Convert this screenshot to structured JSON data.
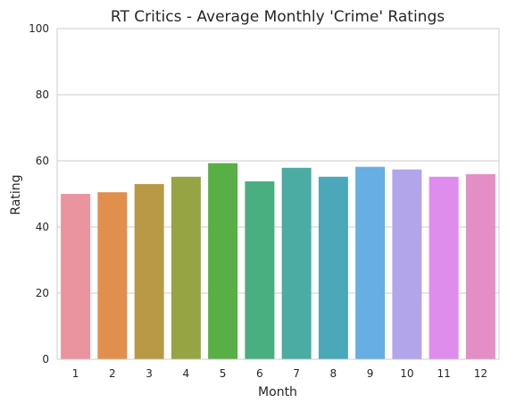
{
  "chart_data": {
    "type": "bar",
    "title": "RT Critics - Average Monthly 'Crime' Ratings",
    "xlabel": "Month",
    "ylabel": "Rating",
    "categories": [
      "1",
      "2",
      "3",
      "4",
      "5",
      "6",
      "7",
      "8",
      "9",
      "10",
      "11",
      "12"
    ],
    "values": [
      50.0,
      50.5,
      53.0,
      55.2,
      59.3,
      53.8,
      57.9,
      55.2,
      58.2,
      57.4,
      55.2,
      56.0
    ],
    "ylim": [
      0,
      100
    ],
    "yticks": [
      0,
      20,
      40,
      60,
      80,
      100
    ],
    "grid": "horizontal",
    "legend": "none",
    "colors": [
      "#e9949f",
      "#e08f4c",
      "#b89a46",
      "#96a444",
      "#58af46",
      "#49ae80",
      "#4aaca2",
      "#4ba8b8",
      "#67aee2",
      "#b2a5ea",
      "#df8ded",
      "#e48ec6"
    ]
  }
}
